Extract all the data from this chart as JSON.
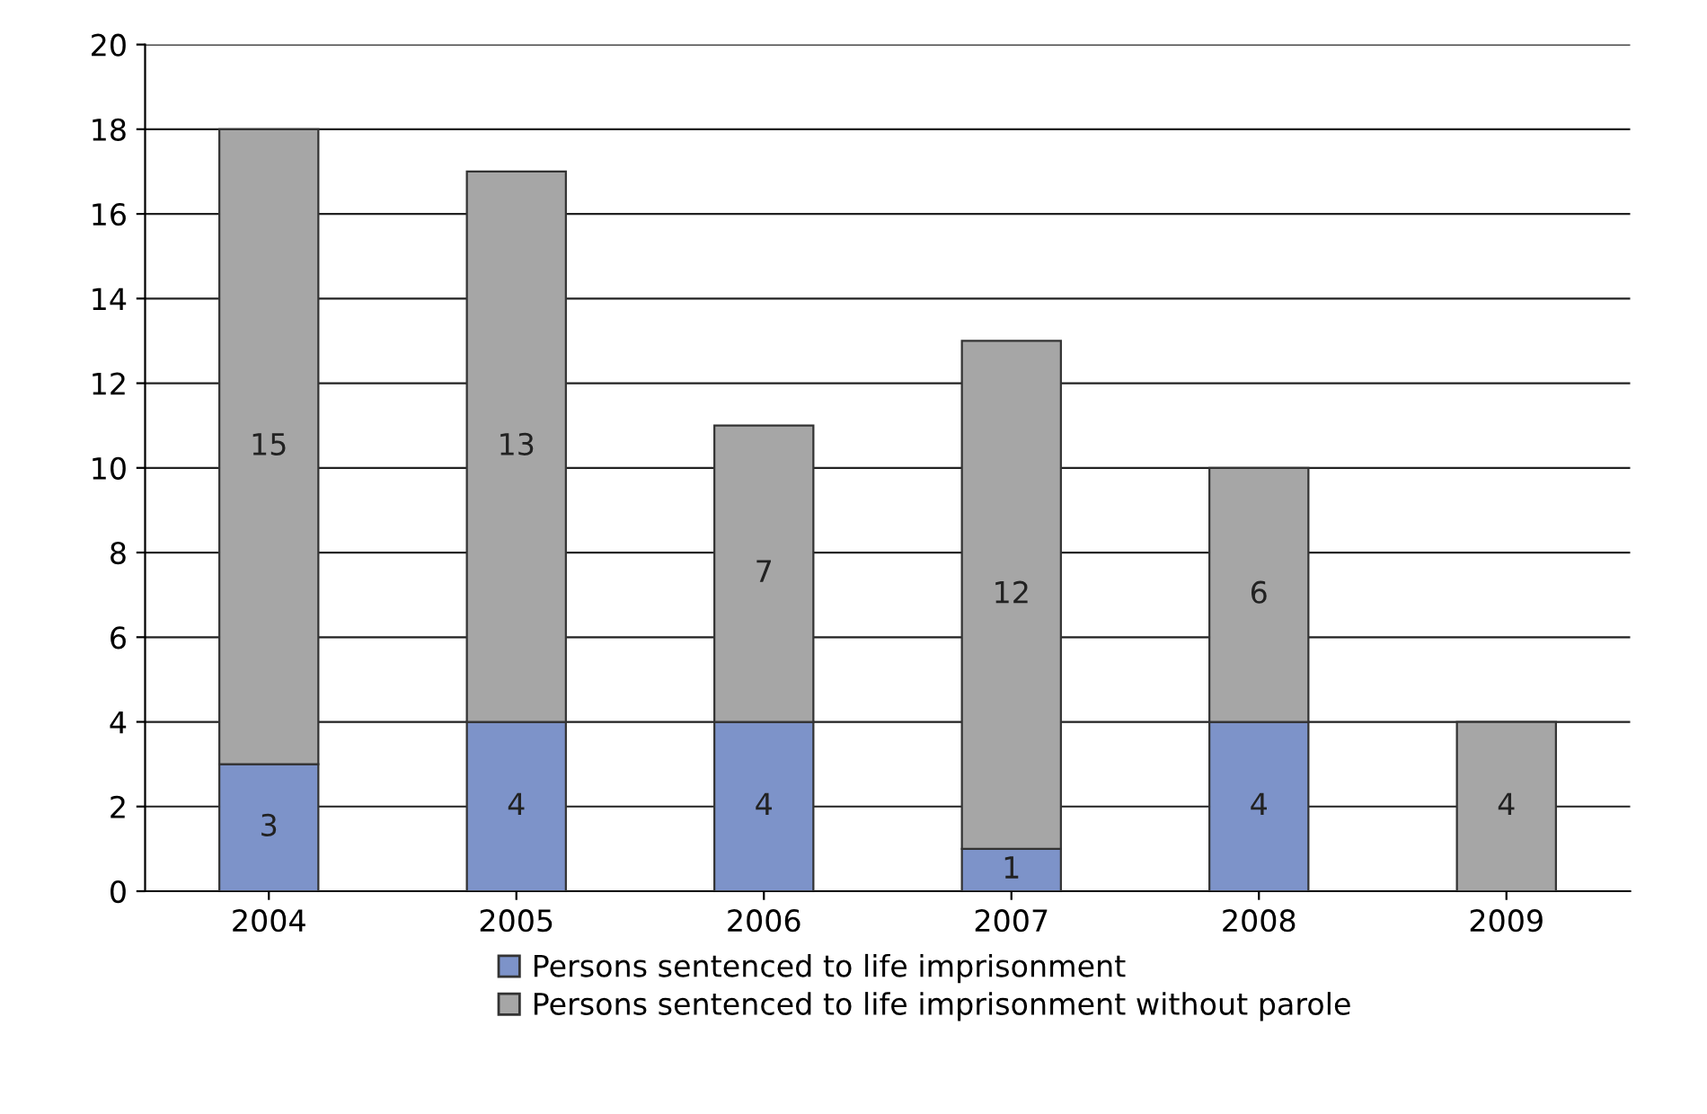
{
  "chart_data": {
    "type": "bar",
    "stacked": true,
    "categories": [
      "2004",
      "2005",
      "2006",
      "2007",
      "2008",
      "2009"
    ],
    "series": [
      {
        "name": "Persons sentenced to life imprisonment",
        "color": "#7d93c9",
        "values": [
          3,
          4,
          4,
          1,
          4,
          0
        ],
        "value_labels": [
          "3",
          "4",
          "4",
          "1",
          "4",
          null
        ]
      },
      {
        "name": "Persons sentenced to life imprisonment without parole",
        "color": "#a6a6a6",
        "values": [
          15,
          13,
          7,
          12,
          6,
          4
        ],
        "value_labels": [
          "15",
          "13",
          "7",
          "12",
          "6",
          "4"
        ]
      }
    ],
    "ylim": [
      0,
      20
    ],
    "yticks": [
      0,
      2,
      4,
      6,
      8,
      10,
      12,
      14,
      16,
      18,
      20
    ],
    "grid": "y",
    "legend": "bottom"
  }
}
